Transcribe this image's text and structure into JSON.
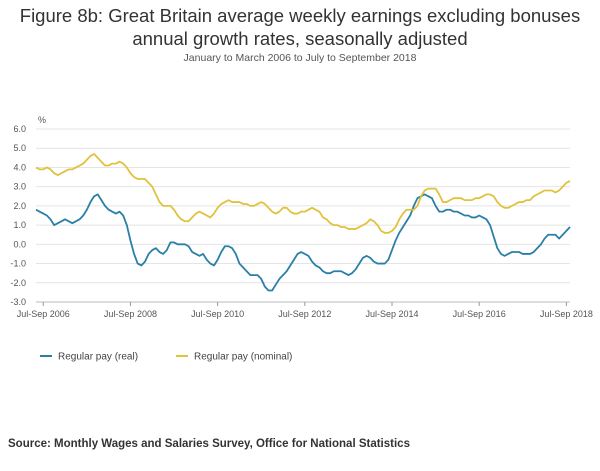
{
  "title": "Figure 8b: Great Britain average weekly earnings excluding bonuses annual growth rates, seasonally adjusted",
  "subtitle": "January to March 2006 to July to September 2018",
  "source": "Source: Monthly Wages and Salaries Survey, Office for National Statistics",
  "chart_data": {
    "type": "line",
    "title": "Figure 8b: Great Britain average weekly earnings excluding bonuses annual growth rates, seasonally adjusted",
    "subtitle": "January to March 2006 to July to September 2018",
    "ylabel": "%",
    "ylim": [
      -3.0,
      6.0
    ],
    "yticks": [
      "6.0",
      "5.0",
      "4.0",
      "3.0",
      "2.0",
      "1.0",
      "0.0",
      "-1.0",
      "-2.0",
      "-3.0"
    ],
    "x_range": [
      "Jan-Mar 2006",
      "Jul-Sep 2018"
    ],
    "xtick_labels": [
      "Jul-Sep 2006",
      "Jul-Sep 2008",
      "Jul-Sep 2010",
      "Jul-Sep 2012",
      "Jul-Sep 2014",
      "Jul-Sep 2016",
      "Jul-Sep 2018"
    ],
    "grid": true,
    "legend_position": "bottom-left",
    "colors": {
      "real": "#2a7fa8",
      "nominal": "#e0c23c"
    },
    "series": [
      {
        "name": "Regular pay (real)",
        "values": [
          1.8,
          1.7,
          1.6,
          1.5,
          1.3,
          1.0,
          1.1,
          1.2,
          1.3,
          1.2,
          1.1,
          1.2,
          1.3,
          1.5,
          1.8,
          2.2,
          2.5,
          2.6,
          2.3,
          2.0,
          1.8,
          1.7,
          1.6,
          1.7,
          1.5,
          1.0,
          0.2,
          -0.5,
          -1.0,
          -1.1,
          -0.9,
          -0.5,
          -0.3,
          -0.2,
          -0.4,
          -0.5,
          -0.3,
          0.1,
          0.1,
          0.0,
          0.0,
          0.0,
          -0.1,
          -0.4,
          -0.5,
          -0.6,
          -0.5,
          -0.8,
          -1.0,
          -1.1,
          -0.8,
          -0.4,
          -0.1,
          -0.1,
          -0.2,
          -0.5,
          -1.0,
          -1.2,
          -1.4,
          -1.6,
          -1.6,
          -1.6,
          -1.8,
          -2.2,
          -2.4,
          -2.4,
          -2.1,
          -1.8,
          -1.6,
          -1.4,
          -1.1,
          -0.8,
          -0.5,
          -0.4,
          -0.5,
          -0.6,
          -0.9,
          -1.1,
          -1.2,
          -1.4,
          -1.5,
          -1.5,
          -1.4,
          -1.4,
          -1.4,
          -1.5,
          -1.6,
          -1.5,
          -1.3,
          -1.0,
          -0.7,
          -0.6,
          -0.7,
          -0.9,
          -1.0,
          -1.0,
          -1.0,
          -0.8,
          -0.3,
          0.2,
          0.6,
          0.9,
          1.2,
          1.5,
          2.0,
          2.4,
          2.5,
          2.6,
          2.5,
          2.4,
          2.0,
          1.7,
          1.7,
          1.8,
          1.8,
          1.7,
          1.7,
          1.6,
          1.5,
          1.5,
          1.4,
          1.4,
          1.5,
          1.4,
          1.3,
          1.0,
          0.4,
          -0.2,
          -0.5,
          -0.6,
          -0.5,
          -0.4,
          -0.4,
          -0.4,
          -0.5,
          -0.5,
          -0.5,
          -0.4,
          -0.2,
          0.0,
          0.3,
          0.5,
          0.5,
          0.5,
          0.3,
          0.5,
          0.7,
          0.9
        ]
      },
      {
        "name": "Regular pay (nominal)",
        "values": [
          4.0,
          3.9,
          3.9,
          4.0,
          3.9,
          3.7,
          3.6,
          3.7,
          3.8,
          3.9,
          3.9,
          4.0,
          4.1,
          4.2,
          4.4,
          4.6,
          4.7,
          4.5,
          4.3,
          4.1,
          4.1,
          4.2,
          4.2,
          4.3,
          4.2,
          4.0,
          3.7,
          3.5,
          3.4,
          3.4,
          3.4,
          3.2,
          3.0,
          2.6,
          2.2,
          2.0,
          2.0,
          2.0,
          1.8,
          1.5,
          1.3,
          1.2,
          1.2,
          1.4,
          1.6,
          1.7,
          1.6,
          1.5,
          1.4,
          1.6,
          1.9,
          2.1,
          2.2,
          2.3,
          2.2,
          2.2,
          2.2,
          2.1,
          2.1,
          2.0,
          2.0,
          2.1,
          2.2,
          2.1,
          1.9,
          1.7,
          1.6,
          1.7,
          1.9,
          1.9,
          1.7,
          1.6,
          1.6,
          1.7,
          1.7,
          1.8,
          1.9,
          1.8,
          1.7,
          1.4,
          1.3,
          1.1,
          1.0,
          1.0,
          0.9,
          0.9,
          0.8,
          0.8,
          0.8,
          0.9,
          1.0,
          1.1,
          1.3,
          1.2,
          1.0,
          0.7,
          0.6,
          0.6,
          0.7,
          0.9,
          1.3,
          1.6,
          1.8,
          1.8,
          1.8,
          2.0,
          2.5,
          2.8,
          2.9,
          2.9,
          2.9,
          2.6,
          2.2,
          2.2,
          2.3,
          2.4,
          2.4,
          2.4,
          2.3,
          2.3,
          2.3,
          2.4,
          2.4,
          2.5,
          2.6,
          2.6,
          2.5,
          2.2,
          2.0,
          1.9,
          1.9,
          2.0,
          2.1,
          2.2,
          2.2,
          2.3,
          2.3,
          2.5,
          2.6,
          2.7,
          2.8,
          2.8,
          2.8,
          2.7,
          2.8,
          3.0,
          3.2,
          3.3
        ]
      }
    ]
  }
}
